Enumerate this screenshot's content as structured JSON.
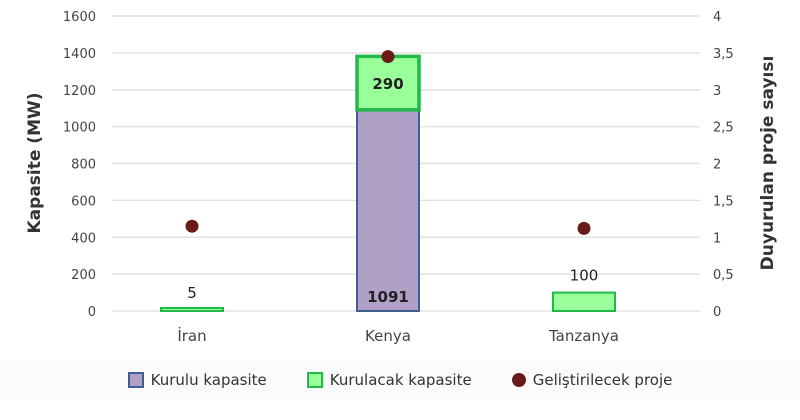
{
  "chart_data": {
    "type": "bar",
    "stacked": true,
    "categories": [
      "İran",
      "Kenya",
      "Tanzanya"
    ],
    "series": [
      {
        "name": "Kurulu kapasite",
        "axis": "left",
        "type": "bar",
        "values": [
          0,
          1091,
          0
        ],
        "labels": [
          "",
          "1091",
          ""
        ],
        "color": "#b0a0c8",
        "border": "#3f5e8f"
      },
      {
        "name": "Kurulacak kapasite",
        "axis": "left",
        "type": "bar",
        "values": [
          5,
          290,
          100
        ],
        "labels": [
          "5",
          "290",
          "100"
        ],
        "color": "#99ff99",
        "border": "#22b84a"
      },
      {
        "name": "Geliştirilecek proje",
        "axis": "right",
        "type": "scatter",
        "values": [
          1.15,
          3.45,
          1.12
        ],
        "color": "#6b1a1a"
      }
    ],
    "ylabel": "Kapasite   (MW)",
    "y2label": "Duyurulan proje sayısı",
    "ylim": [
      0,
      1600
    ],
    "y2lim": [
      0,
      4
    ],
    "yticks": [
      "0",
      "200",
      "400",
      "600",
      "800",
      "1000",
      "1200",
      "1400",
      "1600"
    ],
    "y2ticks": [
      "0",
      "0,5",
      "1",
      "1,5",
      "2",
      "2,5",
      "3",
      "3,5",
      "4"
    ],
    "grid": true,
    "legend_position": "bottom"
  }
}
